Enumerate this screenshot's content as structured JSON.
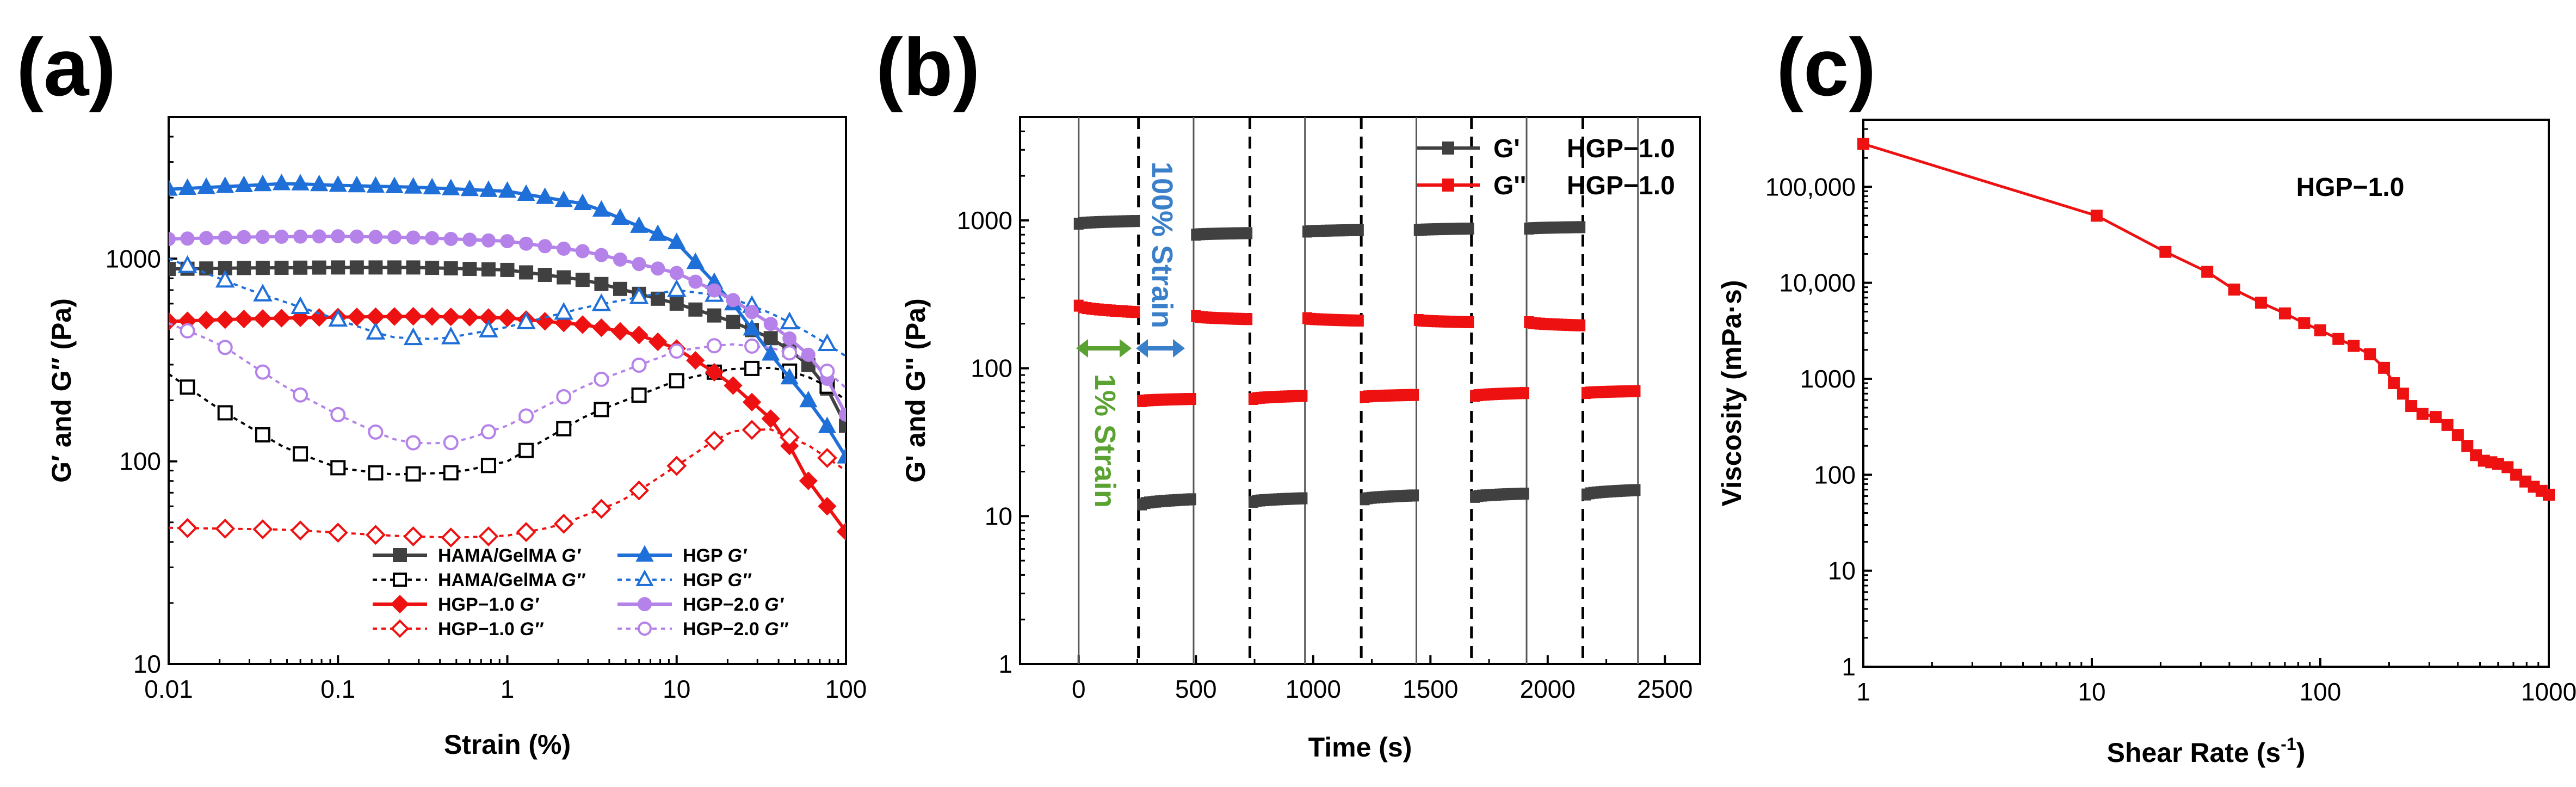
{
  "panel_labels": [
    "(a)",
    "(b)",
    "(c)"
  ],
  "colors": {
    "gray": "#404040",
    "black": "#000000",
    "red": "#ee1111",
    "blue": "#1f6fd8",
    "purple": "#b482e8",
    "green": "#5aa332",
    "strain_blue": "#3a7fc9"
  },
  "chart_data": [
    {
      "panel": "(a)",
      "type": "line",
      "xscale": "log",
      "yscale": "log",
      "xlabel": "Strain (%)",
      "ylabel": "G′ and G″ (Pa)",
      "xlim": [
        0.01,
        100
      ],
      "ylim": [
        10,
        5000
      ],
      "xticks": [
        "0.01",
        "0.1",
        "1",
        "10",
        "100"
      ],
      "yticks": [
        "10",
        "100",
        "1000"
      ],
      "series": [
        {
          "name": "HAMA/GelMA G′",
          "base": "HAMA/GelMA ",
          "mod": "G′",
          "color": "#404040",
          "marker": "square",
          "filled": true,
          "dash": false,
          "points": [
            [
              0.01,
              890
            ],
            [
              0.03,
              900
            ],
            [
              0.1,
              905
            ],
            [
              0.3,
              905
            ],
            [
              1,
              880
            ],
            [
              3,
              780
            ],
            [
              10,
              600
            ],
            [
              20,
              500
            ],
            [
              40,
              390
            ],
            [
              70,
              270
            ],
            [
              100,
              150
            ]
          ]
        },
        {
          "name": "HAMA/GelMA G″",
          "base": "HAMA/GelMA ",
          "mod": "G″",
          "color": "#000000",
          "marker": "square",
          "filled": false,
          "dash": true,
          "points": [
            [
              0.01,
              270
            ],
            [
              0.02,
              180
            ],
            [
              0.05,
              115
            ],
            [
              0.1,
              93
            ],
            [
              0.2,
              86
            ],
            [
              0.5,
              88
            ],
            [
              1,
              100
            ],
            [
              3,
              170
            ],
            [
              10,
              250
            ],
            [
              20,
              285
            ],
            [
              40,
              290
            ],
            [
              70,
              250
            ],
            [
              100,
              200
            ]
          ]
        },
        {
          "name": "HGP−1.0 G′",
          "base": "HGP−1.0 ",
          "mod": "G′",
          "color": "#ee1111",
          "marker": "diamond",
          "filled": true,
          "dash": false,
          "points": [
            [
              0.01,
              490
            ],
            [
              0.03,
              505
            ],
            [
              0.1,
              515
            ],
            [
              0.3,
              520
            ],
            [
              1,
              510
            ],
            [
              3,
              470
            ],
            [
              6,
              420
            ],
            [
              10,
              360
            ],
            [
              20,
              250
            ],
            [
              40,
              150
            ],
            [
              60,
              80
            ],
            [
              100,
              45
            ]
          ]
        },
        {
          "name": "HGP−1.0 G″",
          "base": "HGP−1.0 ",
          "mod": "G″",
          "color": "#ee1111",
          "marker": "diamond",
          "filled": false,
          "dash": true,
          "points": [
            [
              0.01,
              47
            ],
            [
              0.05,
              46
            ],
            [
              0.2,
              43
            ],
            [
              0.5,
              42
            ],
            [
              1,
              43
            ],
            [
              2,
              48
            ],
            [
              5,
              65
            ],
            [
              10,
              95
            ],
            [
              20,
              140
            ],
            [
              35,
              145
            ],
            [
              60,
              120
            ],
            [
              100,
              90
            ]
          ]
        },
        {
          "name": "HGP G′",
          "base": "HGP ",
          "mod": "G′",
          "color": "#1f6fd8",
          "marker": "triangle",
          "filled": true,
          "dash": false,
          "points": [
            [
              0.01,
              2200
            ],
            [
              0.03,
              2300
            ],
            [
              0.05,
              2350
            ],
            [
              0.1,
              2300
            ],
            [
              0.3,
              2250
            ],
            [
              1,
              2150
            ],
            [
              3,
              1850
            ],
            [
              10,
              1200
            ],
            [
              20,
              650
            ],
            [
              40,
              300
            ],
            [
              70,
              170
            ],
            [
              100,
              105
            ]
          ]
        },
        {
          "name": "HGP G″",
          "base": "HGP ",
          "mod": "G″",
          "color": "#1f6fd8",
          "marker": "triangle",
          "filled": false,
          "dash": true,
          "points": [
            [
              0.01,
              1000
            ],
            [
              0.03,
              700
            ],
            [
              0.1,
              500
            ],
            [
              0.2,
              410
            ],
            [
              0.4,
              400
            ],
            [
              1,
              460
            ],
            [
              3,
              580
            ],
            [
              10,
              700
            ],
            [
              20,
              650
            ],
            [
              40,
              520
            ],
            [
              70,
              400
            ],
            [
              100,
              330
            ]
          ]
        },
        {
          "name": "HGP−2.0 G′",
          "base": "HGP−2.0 ",
          "mod": "G′",
          "color": "#b482e8",
          "marker": "circle",
          "filled": true,
          "dash": false,
          "points": [
            [
              0.01,
              1250
            ],
            [
              0.03,
              1280
            ],
            [
              0.1,
              1290
            ],
            [
              0.3,
              1270
            ],
            [
              1,
              1220
            ],
            [
              3,
              1080
            ],
            [
              10,
              850
            ],
            [
              20,
              650
            ],
            [
              40,
              450
            ],
            [
              70,
              300
            ],
            [
              100,
              170
            ]
          ]
        },
        {
          "name": "HGP−2.0 G″",
          "base": "HGP−2.0 ",
          "mod": "G″",
          "color": "#b482e8",
          "marker": "circle",
          "filled": false,
          "dash": true,
          "points": [
            [
              0.01,
              480
            ],
            [
              0.02,
              380
            ],
            [
              0.05,
              230
            ],
            [
              0.1,
              170
            ],
            [
              0.2,
              130
            ],
            [
              0.3,
              122
            ],
            [
              0.5,
              124
            ],
            [
              1,
              150
            ],
            [
              3,
              240
            ],
            [
              10,
              350
            ],
            [
              20,
              380
            ],
            [
              40,
              360
            ],
            [
              70,
              300
            ],
            [
              100,
              230
            ]
          ]
        }
      ]
    },
    {
      "panel": "(b)",
      "type": "line",
      "xscale": "linear",
      "yscale": "log",
      "xlabel": "Time (s)",
      "ylabel": "G' and G'' (Pa)",
      "xlim": [
        -250,
        2650
      ],
      "ylim": [
        1,
        5000
      ],
      "xticks": [
        "0",
        "500",
        "1000",
        "1500",
        "2000",
        "2500"
      ],
      "yticks": [
        "1",
        "10",
        "100",
        "1000"
      ],
      "legend": [
        {
          "name": "G'",
          "sample": "HGP−1.0",
          "color": "#404040"
        },
        {
          "name": "G''",
          "sample": "HGP−1.0",
          "color": "#ee1111"
        }
      ],
      "strain_labels": {
        "high": "100% Strain",
        "low": "1% Strain"
      },
      "solid_lines": [
        0,
        490,
        965,
        1440,
        1910,
        2385
      ],
      "dashed_lines": [
        255,
        730,
        1205,
        1675,
        2150
      ],
      "segments": [
        {
          "strain": "1%",
          "t": [
            0,
            240
          ],
          "Gp": [
            950,
            990
          ],
          "Gpp": [
            265,
            240
          ]
        },
        {
          "strain": "100%",
          "t": [
            270,
            480
          ],
          "Gp": [
            12,
            13
          ],
          "Gpp": [
            60,
            62
          ]
        },
        {
          "strain": "1%",
          "t": [
            500,
            720
          ],
          "Gp": [
            800,
            820
          ],
          "Gpp": [
            225,
            215
          ]
        },
        {
          "strain": "100%",
          "t": [
            745,
            955
          ],
          "Gp": [
            12.5,
            13.2
          ],
          "Gpp": [
            62,
            65
          ]
        },
        {
          "strain": "1%",
          "t": [
            975,
            1195
          ],
          "Gp": [
            840,
            860
          ],
          "Gpp": [
            218,
            210
          ]
        },
        {
          "strain": "100%",
          "t": [
            1220,
            1430
          ],
          "Gp": [
            13,
            13.8
          ],
          "Gpp": [
            64,
            66
          ]
        },
        {
          "strain": "1%",
          "t": [
            1450,
            1665
          ],
          "Gp": [
            860,
            880
          ],
          "Gpp": [
            212,
            205
          ]
        },
        {
          "strain": "100%",
          "t": [
            1690,
            1900
          ],
          "Gp": [
            13.5,
            14.2
          ],
          "Gpp": [
            65,
            68
          ]
        },
        {
          "strain": "1%",
          "t": [
            1920,
            2140
          ],
          "Gp": [
            880,
            900
          ],
          "Gpp": [
            205,
            195
          ]
        },
        {
          "strain": "100%",
          "t": [
            2165,
            2375
          ],
          "Gp": [
            14,
            15
          ],
          "Gpp": [
            68,
            70
          ]
        }
      ]
    },
    {
      "panel": "(c)",
      "type": "line",
      "xscale": "log",
      "yscale": "log",
      "xlabel": "Shear Rate (s",
      "xlabel_sup": "-1",
      "xlabel_end": ")",
      "ylabel": "Viscosity (mPa·s)",
      "xlim": [
        1,
        1000
      ],
      "ylim": [
        1,
        500000
      ],
      "xticks": [
        "1",
        "10",
        "100",
        "1000"
      ],
      "yticks": [
        "1",
        "10",
        "100",
        "1000",
        "10,000",
        "100,000"
      ],
      "annotation": "HGP−1.0",
      "series": [
        {
          "name": "HGP−1.0",
          "color": "#ee1111",
          "points": [
            [
              1,
              280000
            ],
            [
              10.5,
              50000
            ],
            [
              21,
              21000
            ],
            [
              32,
              13000
            ],
            [
              42,
              8500
            ],
            [
              55,
              6200
            ],
            [
              70,
              4800
            ],
            [
              85,
              3800
            ],
            [
              100,
              3200
            ],
            [
              120,
              2600
            ],
            [
              140,
              2200
            ],
            [
              165,
              1800
            ],
            [
              190,
              1300
            ],
            [
              210,
              900
            ],
            [
              230,
              700
            ],
            [
              250,
              520
            ],
            [
              280,
              430
            ],
            [
              320,
              400
            ],
            [
              360,
              330
            ],
            [
              400,
              260
            ],
            [
              440,
              200
            ],
            [
              480,
              160
            ],
            [
              520,
              140
            ],
            [
              560,
              135
            ],
            [
              600,
              130
            ],
            [
              660,
              120
            ],
            [
              720,
              100
            ],
            [
              790,
              85
            ],
            [
              860,
              75
            ],
            [
              930,
              68
            ],
            [
              1000,
              62
            ]
          ]
        }
      ]
    }
  ]
}
